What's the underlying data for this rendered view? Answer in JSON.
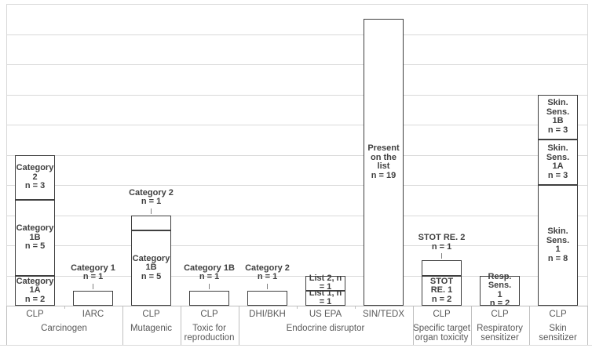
{
  "chart_data": {
    "type": "bar",
    "stacked": true,
    "title": "",
    "xlabel": "",
    "ylabel": "",
    "ylim": [
      0,
      20
    ],
    "gridline_step": 2,
    "legend": "none",
    "grid": true,
    "y_axis_labels_visible": false,
    "groups": [
      {
        "label_lines": [
          "Carcinogen"
        ],
        "bars": [
          {
            "source": "CLP",
            "segments": [
              {
                "name": "Category 1A",
                "n": 2,
                "label_lines": [
                  "Category",
                  "1A",
                  "n = 2"
                ],
                "placement": "inside"
              },
              {
                "name": "Category 1B",
                "n": 5,
                "label_lines": [
                  "Category",
                  "1B",
                  "n = 5"
                ],
                "placement": "inside"
              },
              {
                "name": "Category 2",
                "n": 3,
                "label_lines": [
                  "Category",
                  "2",
                  "n = 3"
                ],
                "placement": "inside"
              }
            ]
          },
          {
            "source": "IARC",
            "segments": [
              {
                "name": "Category 1",
                "n": 1,
                "label_lines": [
                  "Category 1",
                  "n = 1"
                ],
                "placement": "above"
              }
            ]
          }
        ]
      },
      {
        "label_lines": [
          "Mutagenic"
        ],
        "bars": [
          {
            "source": "CLP",
            "segments": [
              {
                "name": "Category 1B",
                "n": 5,
                "label_lines": [
                  "Category",
                  "1B",
                  "n = 5"
                ],
                "placement": "inside"
              },
              {
                "name": "Category 2",
                "n": 1,
                "label_lines": [
                  "Category 2",
                  "n = 1"
                ],
                "placement": "above"
              }
            ]
          }
        ]
      },
      {
        "label_lines": [
          "Toxic for",
          "reproduction"
        ],
        "bars": [
          {
            "source": "CLP",
            "segments": [
              {
                "name": "Category 1B",
                "n": 1,
                "label_lines": [
                  "Category 1B",
                  "n = 1"
                ],
                "placement": "above"
              }
            ]
          }
        ]
      },
      {
        "label_lines": [
          "Endocrine disruptor"
        ],
        "bars": [
          {
            "source": "DHI/BKH",
            "segments": [
              {
                "name": "Category 2",
                "n": 1,
                "label_lines": [
                  "Category 2",
                  "n = 1"
                ],
                "placement": "above"
              }
            ]
          },
          {
            "source": "US EPA",
            "segments": [
              {
                "name": "List 1",
                "n": 1,
                "label_lines": [
                  "List 1, n = 1"
                ],
                "placement": "inside"
              },
              {
                "name": "List 2",
                "n": 1,
                "label_lines": [
                  "List 2, n = 1"
                ],
                "placement": "inside"
              }
            ]
          },
          {
            "source": "SIN/TEDX",
            "segments": [
              {
                "name": "Present on the list",
                "n": 19,
                "label_lines": [
                  "Present",
                  "on the list",
                  "n = 19"
                ],
                "placement": "inside"
              }
            ]
          }
        ]
      },
      {
        "label_lines": [
          "Specific target",
          "organ toxicity"
        ],
        "bars": [
          {
            "source": "CLP",
            "segments": [
              {
                "name": "STOT RE. 1",
                "n": 2,
                "label_lines": [
                  "STOT RE. 1",
                  "n = 2"
                ],
                "placement": "inside"
              },
              {
                "name": "STOT RE. 2",
                "n": 1,
                "label_lines": [
                  "STOT RE. 2",
                  "n = 1"
                ],
                "placement": "above"
              }
            ]
          }
        ]
      },
      {
        "label_lines": [
          "Respiratory",
          "sensitizer"
        ],
        "bars": [
          {
            "source": "CLP",
            "segments": [
              {
                "name": "Resp. Sens. 1",
                "n": 2,
                "label_lines": [
                  "Resp. Sens.",
                  "1",
                  "n = 2"
                ],
                "placement": "inside"
              }
            ]
          }
        ]
      },
      {
        "label_lines": [
          "Skin sensitizer"
        ],
        "bars": [
          {
            "source": "CLP",
            "segments": [
              {
                "name": "Skin. Sens. 1",
                "n": 8,
                "label_lines": [
                  "Skin. Sens.",
                  "1",
                  "n = 8"
                ],
                "placement": "inside"
              },
              {
                "name": "Skin. Sens. 1A",
                "n": 3,
                "label_lines": [
                  "Skin. Sens.",
                  "1A",
                  "n = 3"
                ],
                "placement": "inside"
              },
              {
                "name": "Skin. Sens. 1B",
                "n": 3,
                "label_lines": [
                  "Skin. Sens.",
                  "1B",
                  "n = 3"
                ],
                "placement": "inside"
              }
            ]
          }
        ]
      }
    ],
    "colors": {
      "bar_fill": "#ffffff",
      "bar_border": "#3f3f3f",
      "segment_text": "#404040",
      "axis_text": "#595959",
      "gridline": "#d9d9d9",
      "axis_line": "#bfbfbf",
      "leader_line": "#808080"
    }
  }
}
